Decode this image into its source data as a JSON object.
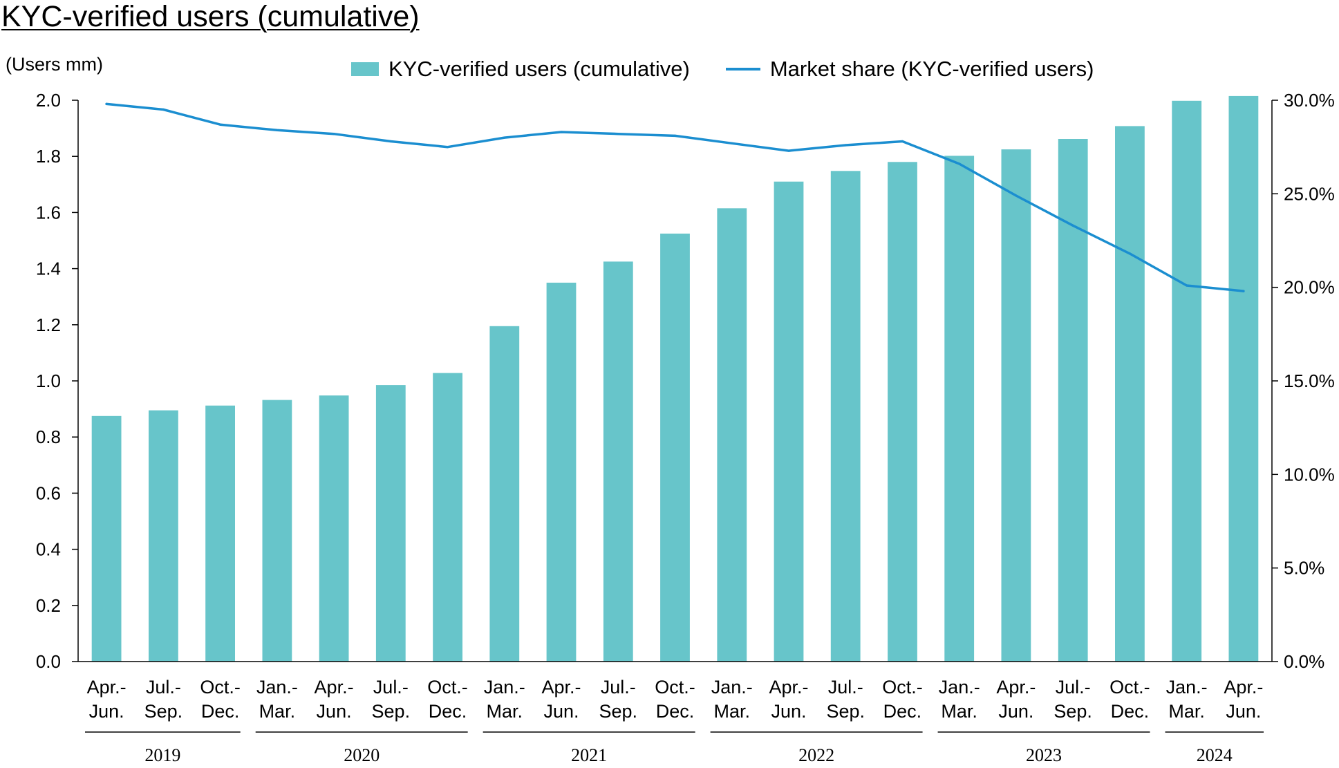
{
  "title": "KYC-verified users (cumulative)",
  "unit_label": "(Users mm)",
  "legend": {
    "bars_label": "KYC-verified users (cumulative)",
    "line_label": "Market share (KYC-verified users)"
  },
  "colors": {
    "bar": "#67c5ca",
    "line": "#1b8ed0",
    "axis": "#000000"
  },
  "chart_data": {
    "type": "bar",
    "title": "KYC-verified users (cumulative)",
    "ylabel": "(Users mm)",
    "ylim": [
      0,
      2.0
    ],
    "y_ticks": [
      "0.0",
      "0.2",
      "0.4",
      "0.6",
      "0.8",
      "1.0",
      "1.2",
      "1.4",
      "1.6",
      "1.8",
      "2.0"
    ],
    "y2lim": [
      0,
      30
    ],
    "y2_ticks": [
      "0.0%",
      "5.0%",
      "10.0%",
      "15.0%",
      "20.0%",
      "25.0%",
      "30.0%"
    ],
    "grid": false,
    "legend_position": "top",
    "categories": [
      {
        "line1": "Apr.-",
        "line2": "Jun."
      },
      {
        "line1": "Jul.-",
        "line2": "Sep."
      },
      {
        "line1": "Oct.-",
        "line2": "Dec."
      },
      {
        "line1": "Jan.-",
        "line2": "Mar."
      },
      {
        "line1": "Apr.-",
        "line2": "Jun."
      },
      {
        "line1": "Jul.-",
        "line2": "Sep."
      },
      {
        "line1": "Oct.-",
        "line2": "Dec."
      },
      {
        "line1": "Jan.-",
        "line2": "Mar."
      },
      {
        "line1": "Apr.-",
        "line2": "Jun."
      },
      {
        "line1": "Jul.-",
        "line2": "Sep."
      },
      {
        "line1": "Oct.-",
        "line2": "Dec."
      },
      {
        "line1": "Jan.-",
        "line2": "Mar."
      },
      {
        "line1": "Apr.-",
        "line2": "Jun."
      },
      {
        "line1": "Jul.-",
        "line2": "Sep."
      },
      {
        "line1": "Oct.-",
        "line2": "Dec."
      },
      {
        "line1": "Jan.-",
        "line2": "Mar."
      },
      {
        "line1": "Apr.-",
        "line2": "Jun."
      },
      {
        "line1": "Jul.-",
        "line2": "Sep."
      },
      {
        "line1": "Oct.-",
        "line2": "Dec."
      },
      {
        "line1": "Jan.-",
        "line2": "Mar."
      },
      {
        "line1": "Apr.-",
        "line2": "Jun."
      }
    ],
    "year_groups": [
      {
        "label": "2019",
        "start": 0,
        "end": 2
      },
      {
        "label": "2020",
        "start": 3,
        "end": 6
      },
      {
        "label": "2021",
        "start": 7,
        "end": 10
      },
      {
        "label": "2022",
        "start": 11,
        "end": 14
      },
      {
        "label": "2023",
        "start": 15,
        "end": 18
      },
      {
        "label": "2024",
        "start": 19,
        "end": 20
      }
    ],
    "series": [
      {
        "name": "KYC-verified users (cumulative)",
        "type": "bar",
        "axis": "left",
        "values": [
          0.875,
          0.895,
          0.912,
          0.932,
          0.948,
          0.985,
          1.028,
          1.195,
          1.35,
          1.425,
          1.525,
          1.615,
          1.71,
          1.748,
          1.78,
          1.802,
          1.825,
          1.862,
          1.908,
          1.998,
          2.015
        ]
      },
      {
        "name": "Market share (KYC-verified users)",
        "type": "line",
        "axis": "right",
        "unit": "%",
        "values": [
          29.8,
          29.5,
          28.7,
          28.4,
          28.2,
          27.8,
          27.5,
          28.0,
          28.3,
          28.2,
          28.1,
          27.7,
          27.3,
          27.6,
          27.8,
          26.6,
          24.9,
          23.3,
          21.8,
          20.1,
          19.8
        ]
      }
    ]
  }
}
